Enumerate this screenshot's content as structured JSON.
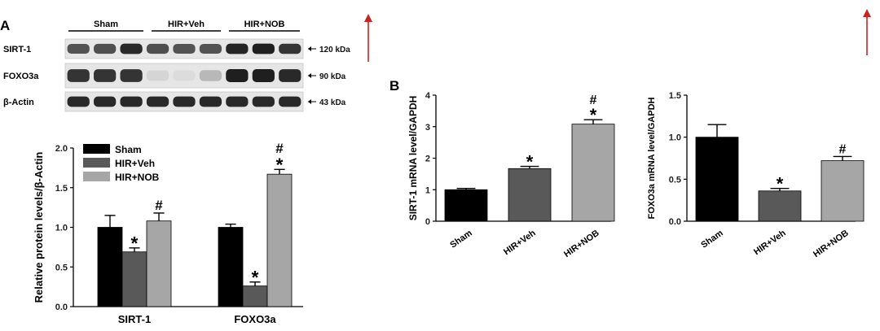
{
  "panel_labels": {
    "a": "A",
    "b": "B"
  },
  "blot": {
    "groups": [
      "Sham",
      "HIR+Veh",
      "HIR+NOB"
    ],
    "rows": [
      {
        "label": "SIRT-1",
        "kda": "120 kDa",
        "intensity": [
          0.7,
          0.72,
          0.9,
          0.72,
          0.7,
          0.7,
          0.92,
          0.95,
          0.85
        ]
      },
      {
        "label": "FOXO3a",
        "kda": "90 kDa",
        "intensity": [
          0.85,
          0.85,
          0.85,
          0.08,
          0.05,
          0.22,
          0.95,
          0.95,
          0.9
        ]
      },
      {
        "label": "β-Actin",
        "kda": "43 kDa",
        "intensity": [
          0.9,
          0.9,
          0.9,
          0.9,
          0.9,
          0.9,
          0.9,
          0.9,
          0.9
        ]
      }
    ]
  },
  "colors": {
    "sham": "#000000",
    "veh": "#595959",
    "nob": "#a6a6a6",
    "arrow": "#cc2222"
  },
  "chart_data": [
    {
      "type": "bar",
      "ylabel": "Relative protein levels/β-Actin",
      "categories": [
        "SIRT-1",
        "FOXO3a"
      ],
      "series": [
        {
          "name": "Sham",
          "values": [
            1.0,
            1.0
          ],
          "errors": [
            0.15,
            0.04
          ],
          "marks": [
            "",
            ""
          ]
        },
        {
          "name": "HIR+Veh",
          "values": [
            0.69,
            0.26
          ],
          "errors": [
            0.05,
            0.05
          ],
          "marks": [
            "*",
            "*"
          ]
        },
        {
          "name": "HIR+NOB",
          "values": [
            1.08,
            1.67
          ],
          "errors": [
            0.1,
            0.06
          ],
          "marks": [
            "#",
            "#\n*"
          ]
        }
      ],
      "ylim": [
        0,
        2.0
      ],
      "yticks": [
        "0.0",
        "0.5",
        "1.0",
        "1.5",
        "2.0"
      ],
      "legend": "top-left"
    },
    {
      "type": "bar",
      "ylabel": "SIRT-1 mRNA level/GAPDH",
      "categories": [
        "Sham",
        "HIR+Veh",
        "HIR+NOB"
      ],
      "values": [
        1.0,
        1.67,
        3.08
      ],
      "errors": [
        0.04,
        0.07,
        0.14
      ],
      "marks": [
        "",
        "*",
        "#\n*"
      ],
      "ylim": [
        0,
        4
      ],
      "yticks": [
        "0",
        "1",
        "2",
        "3",
        "4"
      ]
    },
    {
      "type": "bar",
      "ylabel": "FOXO3a mRNA level/GAPDH",
      "categories": [
        "Sham",
        "HIR+Veh",
        "HIR+NOB"
      ],
      "values": [
        1.0,
        0.36,
        0.72
      ],
      "errors": [
        0.15,
        0.03,
        0.05
      ],
      "marks": [
        "",
        "*",
        "#"
      ],
      "ylim": [
        0,
        1.5
      ],
      "yticks": [
        "0.0",
        "0.5",
        "1.0",
        "1.5"
      ]
    }
  ]
}
